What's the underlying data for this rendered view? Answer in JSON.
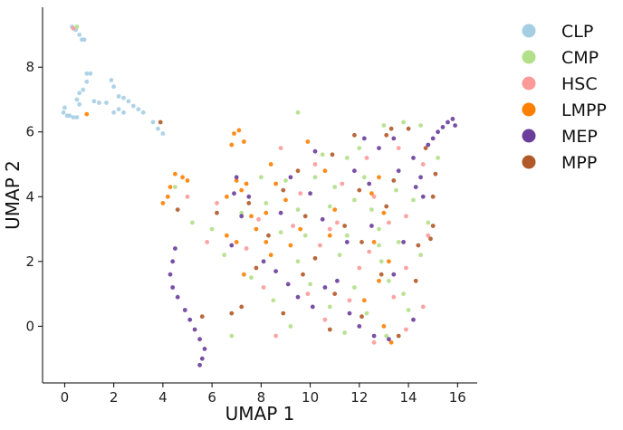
{
  "chart_data": {
    "type": "scatter",
    "xlabel": "UMAP 1",
    "ylabel": "UMAP 2",
    "xlim": [
      -0.9,
      16.8
    ],
    "ylim": [
      -1.75,
      9.85
    ],
    "xticks": [
      0,
      2,
      4,
      6,
      8,
      10,
      12,
      14,
      16
    ],
    "yticks": [
      0,
      2,
      4,
      6,
      8
    ],
    "grid": false,
    "legend_position": "right-outside",
    "colors": {
      "CLP": "#a6cee3",
      "CMP": "#b2df8a",
      "HSC": "#fb9a99",
      "LMPP": "#ff7f00",
      "MEP": "#6a3d9a",
      "MPP": "#b15928"
    },
    "series": [
      {
        "name": "CLP",
        "points": [
          [
            0.3,
            9.25
          ],
          [
            0.45,
            9.15
          ],
          [
            0.6,
            9.0
          ],
          [
            0.7,
            8.85
          ],
          [
            0.8,
            8.85
          ],
          [
            0.9,
            7.8
          ],
          [
            1.05,
            7.8
          ],
          [
            0.9,
            7.55
          ],
          [
            0.75,
            7.3
          ],
          [
            0.6,
            7.2
          ],
          [
            0.5,
            7.0
          ],
          [
            0.6,
            6.85
          ],
          [
            0.2,
            6.5
          ],
          [
            0.35,
            6.45
          ],
          [
            0.5,
            6.45
          ],
          [
            0.0,
            6.75
          ],
          [
            -0.05,
            6.6
          ],
          [
            0.1,
            6.5
          ],
          [
            1.4,
            6.9
          ],
          [
            1.9,
            7.6
          ],
          [
            2.0,
            7.4
          ],
          [
            2.2,
            7.1
          ],
          [
            2.4,
            7.05
          ],
          [
            2.6,
            6.95
          ],
          [
            2.8,
            6.8
          ],
          [
            3.0,
            6.7
          ],
          [
            3.2,
            6.6
          ],
          [
            2.2,
            6.7
          ],
          [
            2.4,
            6.6
          ],
          [
            2.0,
            6.6
          ],
          [
            3.6,
            6.3
          ],
          [
            3.8,
            6.1
          ],
          [
            4.0,
            5.95
          ],
          [
            1.7,
            6.9
          ],
          [
            1.2,
            6.95
          ]
        ]
      },
      {
        "name": "CMP",
        "points": [
          [
            0.5,
            9.25
          ],
          [
            9.5,
            6.6
          ],
          [
            13.0,
            6.2
          ],
          [
            13.8,
            6.3
          ],
          [
            14.5,
            6.2
          ],
          [
            11.5,
            5.2
          ],
          [
            9.0,
            4.5
          ],
          [
            10.2,
            4.6
          ],
          [
            11.0,
            4.3
          ],
          [
            12.2,
            4.6
          ],
          [
            13.5,
            4.2
          ],
          [
            8.2,
            3.8
          ],
          [
            9.5,
            3.6
          ],
          [
            10.8,
            3.7
          ],
          [
            12.5,
            3.6
          ],
          [
            14.2,
            3.9
          ],
          [
            5.2,
            3.2
          ],
          [
            6.0,
            3.0
          ],
          [
            7.2,
            3.5
          ],
          [
            8.8,
            2.9
          ],
          [
            11.5,
            2.8
          ],
          [
            12.8,
            3.0
          ],
          [
            13.6,
            2.6
          ],
          [
            6.5,
            2.2
          ],
          [
            9.5,
            2.0
          ],
          [
            11.2,
            2.2
          ],
          [
            12.9,
            2.0
          ],
          [
            14.5,
            2.2
          ],
          [
            7.6,
            1.5
          ],
          [
            10.0,
            1.3
          ],
          [
            11.8,
            1.2
          ],
          [
            13.2,
            1.4
          ],
          [
            8.5,
            0.8
          ],
          [
            10.8,
            0.6
          ],
          [
            12.3,
            0.4
          ],
          [
            14.0,
            0.5
          ],
          [
            9.2,
            0.0
          ],
          [
            11.4,
            -0.2
          ],
          [
            13.1,
            -0.3
          ],
          [
            6.8,
            -0.3
          ],
          [
            15.2,
            5.2
          ],
          [
            14.8,
            3.2
          ],
          [
            4.5,
            4.3
          ],
          [
            10.5,
            5.3
          ],
          [
            12.0,
            5.5
          ],
          [
            9.8,
            2.8
          ],
          [
            13.8,
            1.0
          ],
          [
            8.0,
            4.6
          ],
          [
            11.8,
            3.9
          ],
          [
            12.8,
            2.5
          ]
        ]
      },
      {
        "name": "HSC",
        "points": [
          [
            0.35,
            9.2
          ],
          [
            8.8,
            5.5
          ],
          [
            10.2,
            5.0
          ],
          [
            12.3,
            5.2
          ],
          [
            13.6,
            5.5
          ],
          [
            14.6,
            5.0
          ],
          [
            9.6,
            4.1
          ],
          [
            11.3,
            4.4
          ],
          [
            12.6,
            4.0
          ],
          [
            13.9,
            3.4
          ],
          [
            7.9,
            3.3
          ],
          [
            9.3,
            3.1
          ],
          [
            11.1,
            3.2
          ],
          [
            13.2,
            3.2
          ],
          [
            14.8,
            2.8
          ],
          [
            5.8,
            2.6
          ],
          [
            7.4,
            2.4
          ],
          [
            10.4,
            2.5
          ],
          [
            12.4,
            2.3
          ],
          [
            13.9,
            1.8
          ],
          [
            8.1,
            1.2
          ],
          [
            9.9,
            1.0
          ],
          [
            11.6,
            0.8
          ],
          [
            13.4,
            0.9
          ],
          [
            14.6,
            0.6
          ],
          [
            8.6,
            -0.3
          ],
          [
            10.6,
            0.2
          ],
          [
            12.6,
            -0.5
          ],
          [
            13.9,
            -0.1
          ],
          [
            5.0,
            4.0
          ],
          [
            6.2,
            3.8
          ],
          [
            12.0,
            1.8
          ],
          [
            10.8,
            3.0
          ]
        ]
      },
      {
        "name": "LMPP",
        "points": [
          [
            0.9,
            6.55
          ],
          [
            6.9,
            5.95
          ],
          [
            7.1,
            6.05
          ],
          [
            7.3,
            5.7
          ],
          [
            6.8,
            5.6
          ],
          [
            4.5,
            4.7
          ],
          [
            4.8,
            4.6
          ],
          [
            5.0,
            4.5
          ],
          [
            4.3,
            4.3
          ],
          [
            4.2,
            4.0
          ],
          [
            4.0,
            3.8
          ],
          [
            7.0,
            4.5
          ],
          [
            7.2,
            4.2
          ],
          [
            7.4,
            4.4
          ],
          [
            6.6,
            4.0
          ],
          [
            8.6,
            4.4
          ],
          [
            9.0,
            3.9
          ],
          [
            7.6,
            3.4
          ],
          [
            7.8,
            3.0
          ],
          [
            8.2,
            2.6
          ],
          [
            8.4,
            2.2
          ],
          [
            7.0,
            2.6
          ],
          [
            9.2,
            2.5
          ],
          [
            8.2,
            3.5
          ],
          [
            6.6,
            2.8
          ],
          [
            9.6,
            3.0
          ],
          [
            11.0,
            3.6
          ],
          [
            10.8,
            2.8
          ],
          [
            7.3,
            1.6
          ],
          [
            12.8,
            4.6
          ],
          [
            12.5,
            4.1
          ],
          [
            13.0,
            3.5
          ],
          [
            12.6,
            2.6
          ],
          [
            13.2,
            2.0
          ],
          [
            12.8,
            1.4
          ],
          [
            12.2,
            0.8
          ],
          [
            13.0,
            0.0
          ],
          [
            13.3,
            -0.5
          ],
          [
            9.9,
            5.7
          ],
          [
            8.4,
            5.0
          ],
          [
            10.6,
            4.8
          ]
        ]
      },
      {
        "name": "MEP",
        "points": [
          [
            15.8,
            6.4
          ],
          [
            15.6,
            6.3
          ],
          [
            15.4,
            6.15
          ],
          [
            15.2,
            6.0
          ],
          [
            15.0,
            5.8
          ],
          [
            14.8,
            5.6
          ],
          [
            15.9,
            6.2
          ],
          [
            14.5,
            4.6
          ],
          [
            14.3,
            4.3
          ],
          [
            14.6,
            4.0
          ],
          [
            14.2,
            5.2
          ],
          [
            13.4,
            5.8
          ],
          [
            12.8,
            5.5
          ],
          [
            13.6,
            4.8
          ],
          [
            12.2,
            5.8
          ],
          [
            4.5,
            2.4
          ],
          [
            4.4,
            2.0
          ],
          [
            4.3,
            1.6
          ],
          [
            4.4,
            1.2
          ],
          [
            4.6,
            0.9
          ],
          [
            4.9,
            0.5
          ],
          [
            5.1,
            0.2
          ],
          [
            5.3,
            -0.1
          ],
          [
            5.5,
            -0.4
          ],
          [
            5.7,
            -0.7
          ],
          [
            5.6,
            -1.0
          ],
          [
            5.5,
            -1.2
          ],
          [
            7.0,
            4.6
          ],
          [
            6.9,
            4.1
          ],
          [
            7.2,
            3.4
          ],
          [
            8.1,
            2.0
          ],
          [
            8.6,
            1.7
          ],
          [
            9.1,
            1.3
          ],
          [
            9.5,
            0.9
          ],
          [
            10.1,
            0.6
          ],
          [
            10.6,
            1.2
          ],
          [
            11.1,
            1.4
          ],
          [
            11.6,
            0.4
          ],
          [
            12.0,
            0.0
          ],
          [
            12.6,
            -0.3
          ],
          [
            13.2,
            -0.4
          ],
          [
            10.5,
            3.3
          ],
          [
            10.0,
            4.1
          ],
          [
            11.5,
            2.6
          ],
          [
            12.5,
            3.1
          ],
          [
            13.8,
            2.6
          ],
          [
            13.4,
            1.6
          ],
          [
            14.2,
            0.2
          ],
          [
            8.8,
            3.5
          ],
          [
            9.2,
            4.6
          ],
          [
            10.2,
            5.4
          ],
          [
            11.8,
            4.8
          ],
          [
            12.4,
            4.4
          ],
          [
            6.8,
            2.5
          ],
          [
            7.5,
            4.0
          ]
        ]
      },
      {
        "name": "MPP",
        "points": [
          [
            3.9,
            6.3
          ],
          [
            9.5,
            4.8
          ],
          [
            10.9,
            5.3
          ],
          [
            11.8,
            5.9
          ],
          [
            13.1,
            5.9
          ],
          [
            14.7,
            5.5
          ],
          [
            8.9,
            4.2
          ],
          [
            12.0,
            4.2
          ],
          [
            13.4,
            4.5
          ],
          [
            15.1,
            4.7
          ],
          [
            7.5,
            3.8
          ],
          [
            9.8,
            3.4
          ],
          [
            11.4,
            3.1
          ],
          [
            13.1,
            3.7
          ],
          [
            15.0,
            3.1
          ],
          [
            6.2,
            3.5
          ],
          [
            8.3,
            2.8
          ],
          [
            10.2,
            2.1
          ],
          [
            12.1,
            2.6
          ],
          [
            14.4,
            2.5
          ],
          [
            7.8,
            1.8
          ],
          [
            9.7,
            1.6
          ],
          [
            11.0,
            1.0
          ],
          [
            12.9,
            1.6
          ],
          [
            14.3,
            1.4
          ],
          [
            7.2,
            0.6
          ],
          [
            8.9,
            0.4
          ],
          [
            10.8,
            -0.1
          ],
          [
            12.1,
            0.3
          ],
          [
            13.6,
            -0.3
          ],
          [
            14.9,
            2.7
          ],
          [
            6.8,
            0.4
          ],
          [
            4.6,
            3.6
          ],
          [
            5.6,
            0.3
          ],
          [
            15.0,
            4.0
          ],
          [
            14.0,
            6.1
          ],
          [
            13.3,
            6.1
          ]
        ]
      }
    ]
  }
}
